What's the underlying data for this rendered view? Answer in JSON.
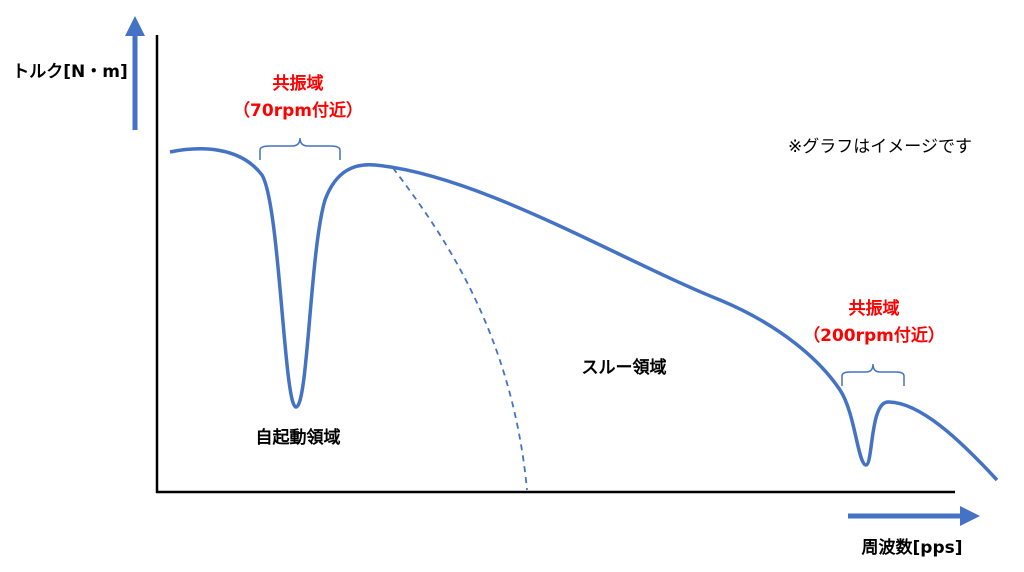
{
  "y_axis_label": "トルク[N・m]",
  "x_axis_label": "周波数[pps]",
  "note": "※グラフはイメージです",
  "resonances": [
    {
      "title": "共振域",
      "subtitle": "（70rpm付近）"
    },
    {
      "title": "共振域",
      "subtitle": "（200rpm付近）"
    }
  ],
  "regions": [
    "自起動領域",
    "スルー領域"
  ]
}
